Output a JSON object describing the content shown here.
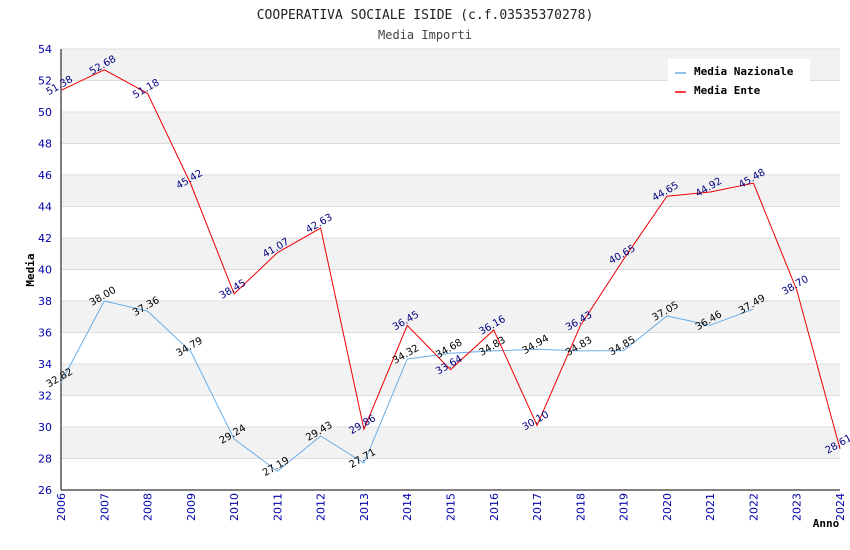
{
  "chart_data": {
    "type": "line",
    "title": "COOPERATIVA SOCIALE ISIDE (c.f.03535370278)",
    "subtitle": "Media Importi",
    "xlabel": "Anno",
    "ylabel": "Media",
    "ylim": [
      26,
      54
    ],
    "y_ticks": [
      "26",
      "28",
      "30",
      "32",
      "34",
      "36",
      "38",
      "40",
      "42",
      "44",
      "46",
      "48",
      "50",
      "52",
      "54"
    ],
    "categories": [
      "2006",
      "2007",
      "2008",
      "2009",
      "2010",
      "2011",
      "2012",
      "2013",
      "2014",
      "2015",
      "2016",
      "2017",
      "2018",
      "2019",
      "2020",
      "2021",
      "2022",
      "2023",
      "2024"
    ],
    "grid": true,
    "legend_position": "top-right",
    "series": [
      {
        "name": "Media Nazionale",
        "color": "#6aaee8",
        "values": [
          32.82,
          38.0,
          37.36,
          34.79,
          29.24,
          27.19,
          29.43,
          27.71,
          34.32,
          34.68,
          34.83,
          34.94,
          34.83,
          34.85,
          37.05,
          36.46,
          37.49,
          null,
          null
        ],
        "labels": [
          "32.82",
          "38.00",
          "37.36",
          "34.79",
          "29.24",
          "27.19",
          "29.43",
          "27.71",
          "34.32",
          "34.68",
          "34.83",
          "34.94",
          "34.83",
          "34.85",
          "37.05",
          "36.46",
          "37.49",
          "",
          ""
        ]
      },
      {
        "name": "Media Ente",
        "color": "#ee0000",
        "values": [
          51.38,
          52.68,
          51.18,
          45.42,
          38.45,
          41.07,
          42.63,
          29.86,
          36.45,
          33.64,
          36.16,
          30.1,
          36.43,
          40.65,
          44.65,
          44.92,
          45.48,
          38.7,
          28.61
        ],
        "labels": [
          "51.38",
          "52.68",
          "51.18",
          "45.42",
          "38.45",
          "41.07",
          "42.63",
          "29.86",
          "36.45",
          "33.64",
          "36.16",
          "30.10",
          "36.43",
          "40.65",
          "44.65",
          "44.92",
          "45.48",
          "38.70",
          "28.61"
        ]
      }
    ]
  }
}
